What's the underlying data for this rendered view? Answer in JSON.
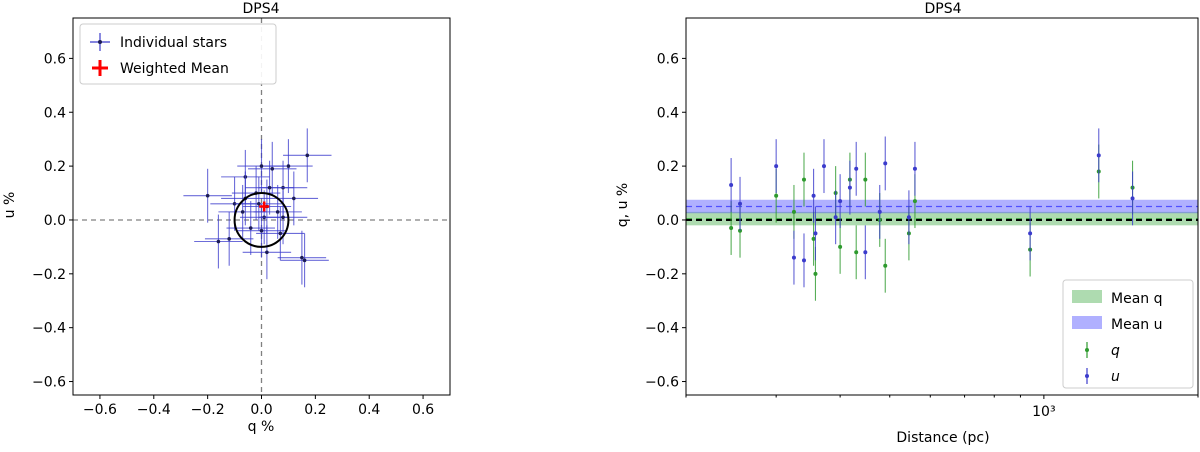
{
  "chart_data": [
    {
      "type": "scatter",
      "title": "DPS4",
      "xlabel": "q %",
      "ylabel": "u %",
      "xlim": [
        -0.7,
        0.7
      ],
      "ylim": [
        -0.65,
        0.75
      ],
      "xticks": [
        "−0.6",
        "−0.4",
        "−0.2",
        "0.0",
        "0.2",
        "0.4",
        "0.6"
      ],
      "xtick_values": [
        -0.6,
        -0.4,
        -0.2,
        0.0,
        0.2,
        0.4,
        0.6
      ],
      "yticks": [
        "−0.6",
        "−0.4",
        "−0.2",
        "0.0",
        "0.2",
        "0.4",
        "0.6"
      ],
      "ytick_values": [
        -0.6,
        -0.4,
        -0.2,
        0.0,
        0.2,
        0.4,
        0.6
      ],
      "legend_position": "top-left",
      "legend": [
        {
          "label": "Individual stars",
          "color": "#3b3bcc"
        },
        {
          "label": "Weighted Mean",
          "color": "#ff0000"
        }
      ],
      "reference_lines": {
        "x": 0.0,
        "y": 0.0,
        "style": "dashed",
        "color": "#808080"
      },
      "circle": {
        "center": [
          0.0,
          0.0
        ],
        "radius": 0.1,
        "color": "#000000"
      },
      "weighted_mean": {
        "q": 0.01,
        "u": 0.05,
        "color": "#ff0000"
      },
      "series": [
        {
          "color": "#3b3bcc",
          "points": [
            {
              "x": 0.17,
              "y": 0.24,
              "xerr": 0.09,
              "yerr": 0.1
            },
            {
              "x": 0.0,
              "y": 0.2,
              "xerr": 0.09,
              "yerr": 0.1
            },
            {
              "x": 0.04,
              "y": 0.19,
              "xerr": 0.09,
              "yerr": 0.1
            },
            {
              "x": 0.1,
              "y": 0.2,
              "xerr": 0.09,
              "yerr": 0.1
            },
            {
              "x": -0.06,
              "y": 0.16,
              "xerr": 0.09,
              "yerr": 0.1
            },
            {
              "x": 0.08,
              "y": 0.12,
              "xerr": 0.09,
              "yerr": 0.1
            },
            {
              "x": 0.03,
              "y": 0.12,
              "xerr": 0.09,
              "yerr": 0.1
            },
            {
              "x": -0.02,
              "y": 0.1,
              "xerr": 0.09,
              "yerr": 0.1
            },
            {
              "x": -0.2,
              "y": 0.09,
              "xerr": 0.09,
              "yerr": 0.1
            },
            {
              "x": -0.06,
              "y": 0.08,
              "xerr": 0.09,
              "yerr": 0.1
            },
            {
              "x": 0.12,
              "y": 0.08,
              "xerr": 0.09,
              "yerr": 0.1
            },
            {
              "x": -0.1,
              "y": 0.06,
              "xerr": 0.09,
              "yerr": 0.1
            },
            {
              "x": -0.01,
              "y": 0.06,
              "xerr": 0.09,
              "yerr": 0.1
            },
            {
              "x": 0.02,
              "y": 0.05,
              "xerr": 0.09,
              "yerr": 0.1
            },
            {
              "x": -0.07,
              "y": 0.03,
              "xerr": 0.09,
              "yerr": 0.1
            },
            {
              "x": 0.06,
              "y": 0.03,
              "xerr": 0.09,
              "yerr": 0.1
            },
            {
              "x": 0.01,
              "y": 0.01,
              "xerr": 0.09,
              "yerr": 0.1
            },
            {
              "x": 0.08,
              "y": 0.01,
              "xerr": 0.09,
              "yerr": 0.1
            },
            {
              "x": -0.04,
              "y": -0.03,
              "xerr": 0.09,
              "yerr": 0.1
            },
            {
              "x": 0.0,
              "y": -0.04,
              "xerr": 0.09,
              "yerr": 0.1
            },
            {
              "x": 0.07,
              "y": -0.05,
              "xerr": 0.09,
              "yerr": 0.1
            },
            {
              "x": -0.12,
              "y": -0.07,
              "xerr": 0.09,
              "yerr": 0.1
            },
            {
              "x": -0.16,
              "y": -0.08,
              "xerr": 0.09,
              "yerr": 0.1
            },
            {
              "x": 0.02,
              "y": -0.12,
              "xerr": 0.09,
              "yerr": 0.1
            },
            {
              "x": 0.15,
              "y": -0.14,
              "xerr": 0.09,
              "yerr": 0.1
            },
            {
              "x": 0.16,
              "y": -0.15,
              "xerr": 0.09,
              "yerr": 0.1
            }
          ]
        }
      ]
    },
    {
      "type": "scatter",
      "title": "DPS4",
      "xlabel": "Distance (pc)",
      "ylabel": "q, u %",
      "xscale": "log",
      "xlim": [
        200,
        2000
      ],
      "ylim": [
        -0.65,
        0.75
      ],
      "xticks": [
        "10³"
      ],
      "xtick_values": [
        1000
      ],
      "yticks": [
        "−0.6",
        "−0.4",
        "−0.2",
        "0.0",
        "0.2",
        "0.4",
        "0.6"
      ],
      "ytick_values": [
        -0.6,
        -0.4,
        -0.2,
        0.0,
        0.2,
        0.4,
        0.6
      ],
      "legend_position": "lower-right",
      "legend": [
        {
          "label": "Mean q",
          "kind": "band",
          "color": "#4caf50"
        },
        {
          "label": "Mean u",
          "kind": "band",
          "color": "#5050ff"
        },
        {
          "label": "q",
          "kind": "errorbar",
          "color": "#2e9a2e"
        },
        {
          "label": "u",
          "kind": "errorbar",
          "color": "#3b3bcc"
        }
      ],
      "bands": [
        {
          "name": "Mean q",
          "center": 0.005,
          "low": -0.02,
          "high": 0.03,
          "color": "#4caf50"
        },
        {
          "name": "Mean u",
          "center": 0.05,
          "low": 0.025,
          "high": 0.075,
          "color": "#5050ff"
        }
      ],
      "zero_line": {
        "y": 0.0,
        "style": "dashed",
        "color": "#000000"
      },
      "series": [
        {
          "name": "q",
          "color": "#2e9a2e",
          "points": [
            {
              "x": 245,
              "y": -0.03,
              "yerr": 0.1
            },
            {
              "x": 255,
              "y": -0.04,
              "yerr": 0.1
            },
            {
              "x": 300,
              "y": 0.09,
              "yerr": 0.1
            },
            {
              "x": 325,
              "y": 0.03,
              "yerr": 0.1
            },
            {
              "x": 340,
              "y": 0.15,
              "yerr": 0.1
            },
            {
              "x": 355,
              "y": -0.07,
              "yerr": 0.1
            },
            {
              "x": 358,
              "y": -0.2,
              "yerr": 0.1
            },
            {
              "x": 392,
              "y": 0.1,
              "yerr": 0.1
            },
            {
              "x": 400,
              "y": -0.1,
              "yerr": 0.1
            },
            {
              "x": 418,
              "y": 0.15,
              "yerr": 0.1
            },
            {
              "x": 430,
              "y": -0.12,
              "yerr": 0.1
            },
            {
              "x": 448,
              "y": 0.15,
              "yerr": 0.1
            },
            {
              "x": 478,
              "y": 0.0,
              "yerr": 0.1
            },
            {
              "x": 490,
              "y": -0.17,
              "yerr": 0.1
            },
            {
              "x": 545,
              "y": -0.05,
              "yerr": 0.1
            },
            {
              "x": 560,
              "y": 0.07,
              "yerr": 0.1
            },
            {
              "x": 940,
              "y": -0.11,
              "yerr": 0.1
            },
            {
              "x": 1280,
              "y": 0.18,
              "yerr": 0.1
            },
            {
              "x": 1490,
              "y": 0.12,
              "yerr": 0.1
            }
          ]
        },
        {
          "name": "u",
          "color": "#3b3bcc",
          "points": [
            {
              "x": 245,
              "y": 0.13,
              "yerr": 0.1
            },
            {
              "x": 255,
              "y": 0.06,
              "yerr": 0.1
            },
            {
              "x": 300,
              "y": 0.2,
              "yerr": 0.1
            },
            {
              "x": 325,
              "y": -0.14,
              "yerr": 0.1
            },
            {
              "x": 340,
              "y": -0.15,
              "yerr": 0.1
            },
            {
              "x": 355,
              "y": 0.09,
              "yerr": 0.1
            },
            {
              "x": 358,
              "y": -0.05,
              "yerr": 0.1
            },
            {
              "x": 372,
              "y": 0.2,
              "yerr": 0.1
            },
            {
              "x": 392,
              "y": 0.01,
              "yerr": 0.1
            },
            {
              "x": 400,
              "y": 0.07,
              "yerr": 0.1
            },
            {
              "x": 418,
              "y": 0.12,
              "yerr": 0.1
            },
            {
              "x": 430,
              "y": 0.19,
              "yerr": 0.1
            },
            {
              "x": 448,
              "y": -0.12,
              "yerr": 0.1
            },
            {
              "x": 478,
              "y": 0.03,
              "yerr": 0.1
            },
            {
              "x": 490,
              "y": 0.21,
              "yerr": 0.1
            },
            {
              "x": 545,
              "y": 0.01,
              "yerr": 0.1
            },
            {
              "x": 560,
              "y": 0.19,
              "yerr": 0.1
            },
            {
              "x": 940,
              "y": -0.05,
              "yerr": 0.1
            },
            {
              "x": 1280,
              "y": 0.24,
              "yerr": 0.1
            },
            {
              "x": 1490,
              "y": 0.08,
              "yerr": 0.1
            }
          ]
        }
      ]
    }
  ]
}
